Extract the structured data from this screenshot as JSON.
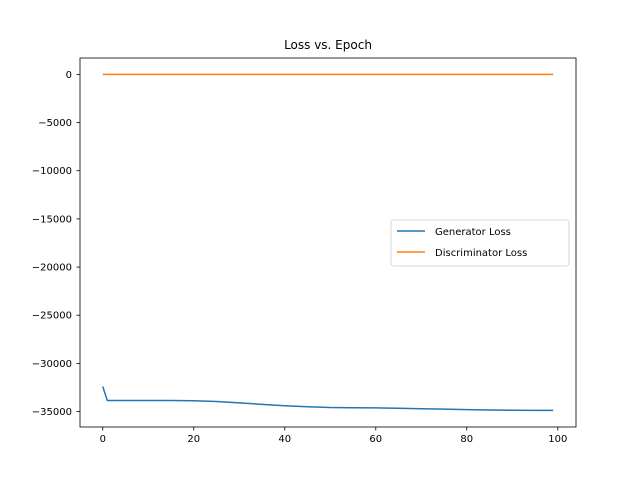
{
  "chart_data": {
    "type": "line",
    "title": "Loss vs. Epoch",
    "xlabel": "",
    "ylabel": "",
    "xlim": [
      -5,
      104
    ],
    "ylim": [
      -36600,
      1700
    ],
    "xticks": [
      0,
      20,
      40,
      60,
      80,
      100
    ],
    "xtick_labels": [
      "0",
      "20",
      "40",
      "60",
      "80",
      "100"
    ],
    "yticks": [
      0,
      -5000,
      -10000,
      -15000,
      -20000,
      -25000,
      -30000,
      -35000
    ],
    "ytick_labels": [
      "0",
      "−5000",
      "−10000",
      "−15000",
      "−20000",
      "−25000",
      "−30000",
      "−35000"
    ],
    "grid": false,
    "legend_position": "center-right",
    "x": [
      0,
      1,
      5,
      10,
      15,
      20,
      25,
      30,
      35,
      40,
      45,
      50,
      55,
      60,
      65,
      70,
      75,
      80,
      85,
      90,
      95,
      99
    ],
    "series": [
      {
        "name": "Generator Loss",
        "color": "#1f77b4",
        "values": [
          -32400,
          -33850,
          -33850,
          -33850,
          -33850,
          -33870,
          -33950,
          -34100,
          -34250,
          -34400,
          -34500,
          -34580,
          -34600,
          -34620,
          -34650,
          -34700,
          -34750,
          -34800,
          -34830,
          -34860,
          -34870,
          -34880
        ]
      },
      {
        "name": "Discriminator Loss",
        "color": "#ff7f0e",
        "values": [
          1,
          1,
          1,
          1,
          1,
          1,
          1,
          1,
          1,
          1,
          1,
          1,
          1,
          1,
          1,
          1,
          1,
          1,
          1,
          1,
          1,
          1
        ]
      }
    ]
  }
}
